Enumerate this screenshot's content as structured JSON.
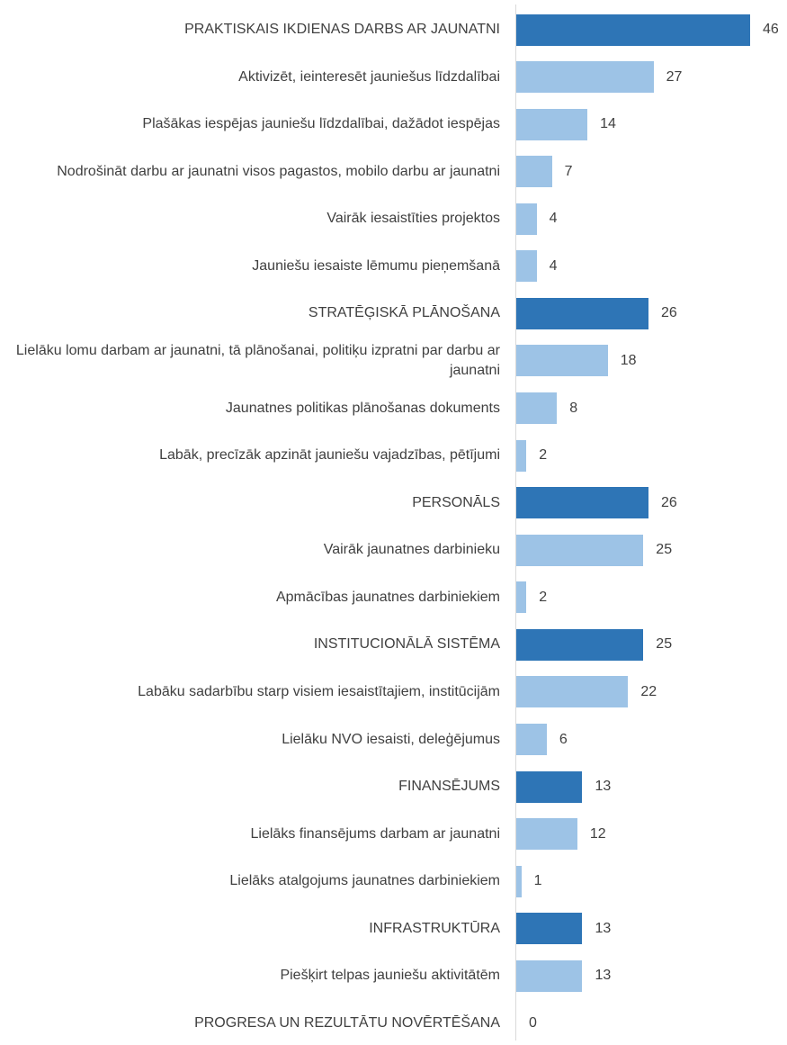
{
  "chart_data": {
    "type": "bar",
    "orientation": "horizontal",
    "categories": [
      "PRAKTISKAIS IKDIENAS DARBS AR JAUNATNI",
      "Aktivizēt, ieinteresēt jauniešus līdzdalībai",
      "Plašākas iespējas jauniešu līdzdalībai, dažādot iespējas",
      "Nodrošināt darbu ar jaunatni visos pagastos, mobilo darbu ar jaunatni",
      "Vairāk iesaistīties projektos",
      "Jauniešu iesaiste lēmumu pieņemšanā",
      "STRATĒĢISKĀ PLĀNOŠANA",
      "Lielāku lomu darbam ar jaunatni, tā plānošanai, politiķu izpratni par darbu ar jaunatni",
      "Jaunatnes politikas plānošanas dokuments",
      "Labāk, precīzāk apzināt jauniešu vajadzības, pētījumi",
      "PERSONĀLS",
      "Vairāk jaunatnes darbinieku",
      "Apmācības jaunatnes darbiniekiem",
      "INSTITUCIONĀLĀ SISTĒMA",
      "Labāku sadarbību starp visiem iesaistītajiem, institūcijām",
      "Lielāku NVO iesaisti, deleģējumus",
      "FINANSĒJUMS",
      "Lielāks finansējums darbam ar jaunatni",
      "Lielāks atalgojums jaunatnes darbiniekiem",
      "INFRASTRUKTŪRA",
      "Piešķirt telpas jauniešu aktivitātēm",
      "PROGRESA UN REZULTĀTU NOVĒRTĒŠANA"
    ],
    "values": [
      46,
      27,
      14,
      7,
      4,
      4,
      26,
      18,
      8,
      2,
      26,
      25,
      2,
      25,
      22,
      6,
      13,
      12,
      1,
      13,
      13,
      0
    ],
    "colors": [
      "#2e75b6",
      "#9dc3e6",
      "#9dc3e6",
      "#9dc3e6",
      "#9dc3e6",
      "#9dc3e6",
      "#2e75b6",
      "#9dc3e6",
      "#9dc3e6",
      "#9dc3e6",
      "#2e75b6",
      "#9dc3e6",
      "#9dc3e6",
      "#2e75b6",
      "#9dc3e6",
      "#9dc3e6",
      "#2e75b6",
      "#9dc3e6",
      "#9dc3e6",
      "#2e75b6",
      "#9dc3e6",
      "#2e75b6"
    ]
  }
}
